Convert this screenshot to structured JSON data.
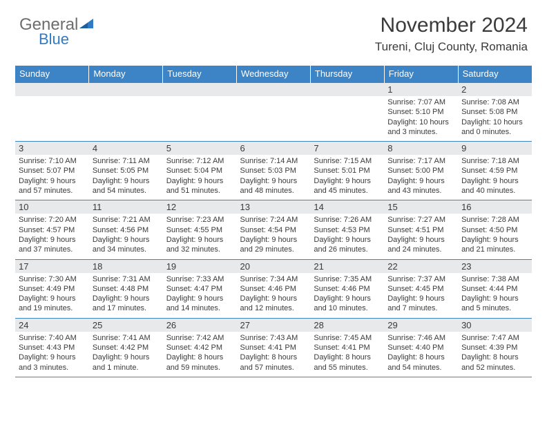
{
  "brand": {
    "general": "General",
    "blue": "Blue"
  },
  "header": {
    "title": "November 2024",
    "subtitle": "Tureni, Cluj County, Romania"
  },
  "style": {
    "header_bg": "#3c84c6",
    "header_text": "#ffffff",
    "daynum_bg": "#e8e9ea",
    "border_color": "#3c84c6",
    "body_text": "#3a3a3a",
    "brand_gray": "#6d6d6d",
    "brand_blue": "#2f7bc4",
    "title_fontsize": 30,
    "subtitle_fontsize": 17,
    "th_fontsize": 13,
    "cell_fontsize": 11
  },
  "weekdays": [
    "Sunday",
    "Monday",
    "Tuesday",
    "Wednesday",
    "Thursday",
    "Friday",
    "Saturday"
  ],
  "weeks": [
    [
      {
        "n": "",
        "sr": "",
        "ss": "",
        "dl": ""
      },
      {
        "n": "",
        "sr": "",
        "ss": "",
        "dl": ""
      },
      {
        "n": "",
        "sr": "",
        "ss": "",
        "dl": ""
      },
      {
        "n": "",
        "sr": "",
        "ss": "",
        "dl": ""
      },
      {
        "n": "",
        "sr": "",
        "ss": "",
        "dl": ""
      },
      {
        "n": "1",
        "sr": "Sunrise: 7:07 AM",
        "ss": "Sunset: 5:10 PM",
        "dl": "Daylight: 10 hours and 3 minutes."
      },
      {
        "n": "2",
        "sr": "Sunrise: 7:08 AM",
        "ss": "Sunset: 5:08 PM",
        "dl": "Daylight: 10 hours and 0 minutes."
      }
    ],
    [
      {
        "n": "3",
        "sr": "Sunrise: 7:10 AM",
        "ss": "Sunset: 5:07 PM",
        "dl": "Daylight: 9 hours and 57 minutes."
      },
      {
        "n": "4",
        "sr": "Sunrise: 7:11 AM",
        "ss": "Sunset: 5:05 PM",
        "dl": "Daylight: 9 hours and 54 minutes."
      },
      {
        "n": "5",
        "sr": "Sunrise: 7:12 AM",
        "ss": "Sunset: 5:04 PM",
        "dl": "Daylight: 9 hours and 51 minutes."
      },
      {
        "n": "6",
        "sr": "Sunrise: 7:14 AM",
        "ss": "Sunset: 5:03 PM",
        "dl": "Daylight: 9 hours and 48 minutes."
      },
      {
        "n": "7",
        "sr": "Sunrise: 7:15 AM",
        "ss": "Sunset: 5:01 PM",
        "dl": "Daylight: 9 hours and 45 minutes."
      },
      {
        "n": "8",
        "sr": "Sunrise: 7:17 AM",
        "ss": "Sunset: 5:00 PM",
        "dl": "Daylight: 9 hours and 43 minutes."
      },
      {
        "n": "9",
        "sr": "Sunrise: 7:18 AM",
        "ss": "Sunset: 4:59 PM",
        "dl": "Daylight: 9 hours and 40 minutes."
      }
    ],
    [
      {
        "n": "10",
        "sr": "Sunrise: 7:20 AM",
        "ss": "Sunset: 4:57 PM",
        "dl": "Daylight: 9 hours and 37 minutes."
      },
      {
        "n": "11",
        "sr": "Sunrise: 7:21 AM",
        "ss": "Sunset: 4:56 PM",
        "dl": "Daylight: 9 hours and 34 minutes."
      },
      {
        "n": "12",
        "sr": "Sunrise: 7:23 AM",
        "ss": "Sunset: 4:55 PM",
        "dl": "Daylight: 9 hours and 32 minutes."
      },
      {
        "n": "13",
        "sr": "Sunrise: 7:24 AM",
        "ss": "Sunset: 4:54 PM",
        "dl": "Daylight: 9 hours and 29 minutes."
      },
      {
        "n": "14",
        "sr": "Sunrise: 7:26 AM",
        "ss": "Sunset: 4:53 PM",
        "dl": "Daylight: 9 hours and 26 minutes."
      },
      {
        "n": "15",
        "sr": "Sunrise: 7:27 AM",
        "ss": "Sunset: 4:51 PM",
        "dl": "Daylight: 9 hours and 24 minutes."
      },
      {
        "n": "16",
        "sr": "Sunrise: 7:28 AM",
        "ss": "Sunset: 4:50 PM",
        "dl": "Daylight: 9 hours and 21 minutes."
      }
    ],
    [
      {
        "n": "17",
        "sr": "Sunrise: 7:30 AM",
        "ss": "Sunset: 4:49 PM",
        "dl": "Daylight: 9 hours and 19 minutes."
      },
      {
        "n": "18",
        "sr": "Sunrise: 7:31 AM",
        "ss": "Sunset: 4:48 PM",
        "dl": "Daylight: 9 hours and 17 minutes."
      },
      {
        "n": "19",
        "sr": "Sunrise: 7:33 AM",
        "ss": "Sunset: 4:47 PM",
        "dl": "Daylight: 9 hours and 14 minutes."
      },
      {
        "n": "20",
        "sr": "Sunrise: 7:34 AM",
        "ss": "Sunset: 4:46 PM",
        "dl": "Daylight: 9 hours and 12 minutes."
      },
      {
        "n": "21",
        "sr": "Sunrise: 7:35 AM",
        "ss": "Sunset: 4:46 PM",
        "dl": "Daylight: 9 hours and 10 minutes."
      },
      {
        "n": "22",
        "sr": "Sunrise: 7:37 AM",
        "ss": "Sunset: 4:45 PM",
        "dl": "Daylight: 9 hours and 7 minutes."
      },
      {
        "n": "23",
        "sr": "Sunrise: 7:38 AM",
        "ss": "Sunset: 4:44 PM",
        "dl": "Daylight: 9 hours and 5 minutes."
      }
    ],
    [
      {
        "n": "24",
        "sr": "Sunrise: 7:40 AM",
        "ss": "Sunset: 4:43 PM",
        "dl": "Daylight: 9 hours and 3 minutes."
      },
      {
        "n": "25",
        "sr": "Sunrise: 7:41 AM",
        "ss": "Sunset: 4:42 PM",
        "dl": "Daylight: 9 hours and 1 minute."
      },
      {
        "n": "26",
        "sr": "Sunrise: 7:42 AM",
        "ss": "Sunset: 4:42 PM",
        "dl": "Daylight: 8 hours and 59 minutes."
      },
      {
        "n": "27",
        "sr": "Sunrise: 7:43 AM",
        "ss": "Sunset: 4:41 PM",
        "dl": "Daylight: 8 hours and 57 minutes."
      },
      {
        "n": "28",
        "sr": "Sunrise: 7:45 AM",
        "ss": "Sunset: 4:41 PM",
        "dl": "Daylight: 8 hours and 55 minutes."
      },
      {
        "n": "29",
        "sr": "Sunrise: 7:46 AM",
        "ss": "Sunset: 4:40 PM",
        "dl": "Daylight: 8 hours and 54 minutes."
      },
      {
        "n": "30",
        "sr": "Sunrise: 7:47 AM",
        "ss": "Sunset: 4:39 PM",
        "dl": "Daylight: 8 hours and 52 minutes."
      }
    ]
  ]
}
